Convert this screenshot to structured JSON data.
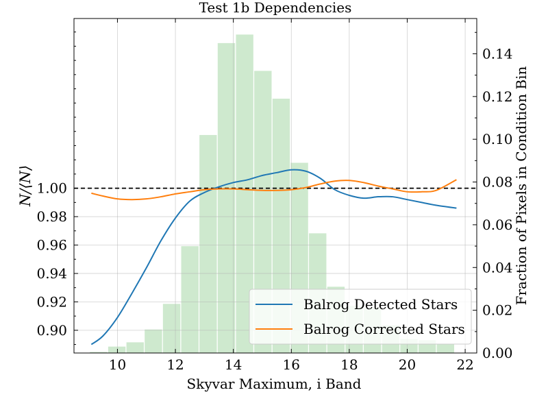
{
  "chart_data": {
    "type": "line",
    "title": "Test 1b Dependencies",
    "xlabel": "Skyvar Maximum, i Band",
    "ylabel": "N/⟨N⟩",
    "y2label": "Fraction of Pixels in Condition Bin",
    "xlim": [
      8.5,
      22.4
    ],
    "ylim": [
      0.884,
      1.1195
    ],
    "y2lim": [
      0.0,
      0.1565
    ],
    "x_ticks": [
      10,
      12,
      14,
      16,
      18,
      20,
      22
    ],
    "y_ticks": [
      0.9,
      0.92,
      0.94,
      0.96,
      0.98,
      1.0
    ],
    "y2_ticks": [
      0.0,
      0.02,
      0.04,
      0.06,
      0.08,
      0.1,
      0.12,
      0.14
    ],
    "grid": true,
    "legend_position": "lower-right",
    "reference_line": {
      "y": 1.0,
      "style": "dashed",
      "color": "#000000"
    },
    "histogram": {
      "color": "#2ca02c",
      "bin_width": 0.6,
      "centers": [
        9.35,
        9.98,
        10.61,
        11.24,
        11.87,
        12.5,
        13.13,
        13.76,
        14.39,
        15.02,
        15.65,
        16.28,
        16.91,
        17.54,
        18.17,
        18.8,
        19.43,
        20.06,
        20.69,
        21.32
      ],
      "values": [
        0.0005,
        0.003,
        0.005,
        0.011,
        0.023,
        0.05,
        0.102,
        0.145,
        0.149,
        0.132,
        0.119,
        0.089,
        0.056,
        0.031,
        0.022,
        0.021,
        0.013,
        0.0065,
        0.006,
        0.004
      ]
    },
    "series": [
      {
        "name": "Balrog Detected Stars",
        "color": "#1f77b4",
        "x": [
          9.1,
          9.5,
          10.0,
          10.5,
          11.0,
          11.5,
          12.0,
          12.5,
          13.0,
          13.5,
          14.0,
          14.5,
          15.0,
          15.5,
          16.0,
          16.5,
          17.0,
          17.5,
          18.0,
          18.5,
          19.0,
          19.5,
          20.0,
          20.5,
          21.0,
          21.7
        ],
        "values": [
          0.89,
          0.896,
          0.909,
          0.926,
          0.944,
          0.963,
          0.979,
          0.991,
          0.997,
          1.001,
          1.004,
          1.006,
          1.009,
          1.011,
          1.013,
          1.012,
          1.007,
          0.999,
          0.995,
          0.993,
          0.994,
          0.994,
          0.992,
          0.99,
          0.988,
          0.986
        ]
      },
      {
        "name": "Balrog Corrected Stars",
        "color": "#ff7f0e",
        "x": [
          9.1,
          9.5,
          10.0,
          10.5,
          11.0,
          11.5,
          12.0,
          12.5,
          13.0,
          13.5,
          14.0,
          14.5,
          15.0,
          15.5,
          16.0,
          16.5,
          17.0,
          17.5,
          18.0,
          18.5,
          19.0,
          19.5,
          20.0,
          20.5,
          21.0,
          21.7
        ],
        "values": [
          0.9965,
          0.9945,
          0.9925,
          0.992,
          0.9925,
          0.994,
          0.996,
          0.9975,
          0.999,
          0.9995,
          0.9995,
          0.999,
          0.9985,
          0.9985,
          0.999,
          1.0005,
          1.003,
          1.005,
          1.0055,
          1.004,
          1.0015,
          0.9995,
          0.9975,
          0.9975,
          0.9985,
          1.006
        ]
      }
    ]
  }
}
